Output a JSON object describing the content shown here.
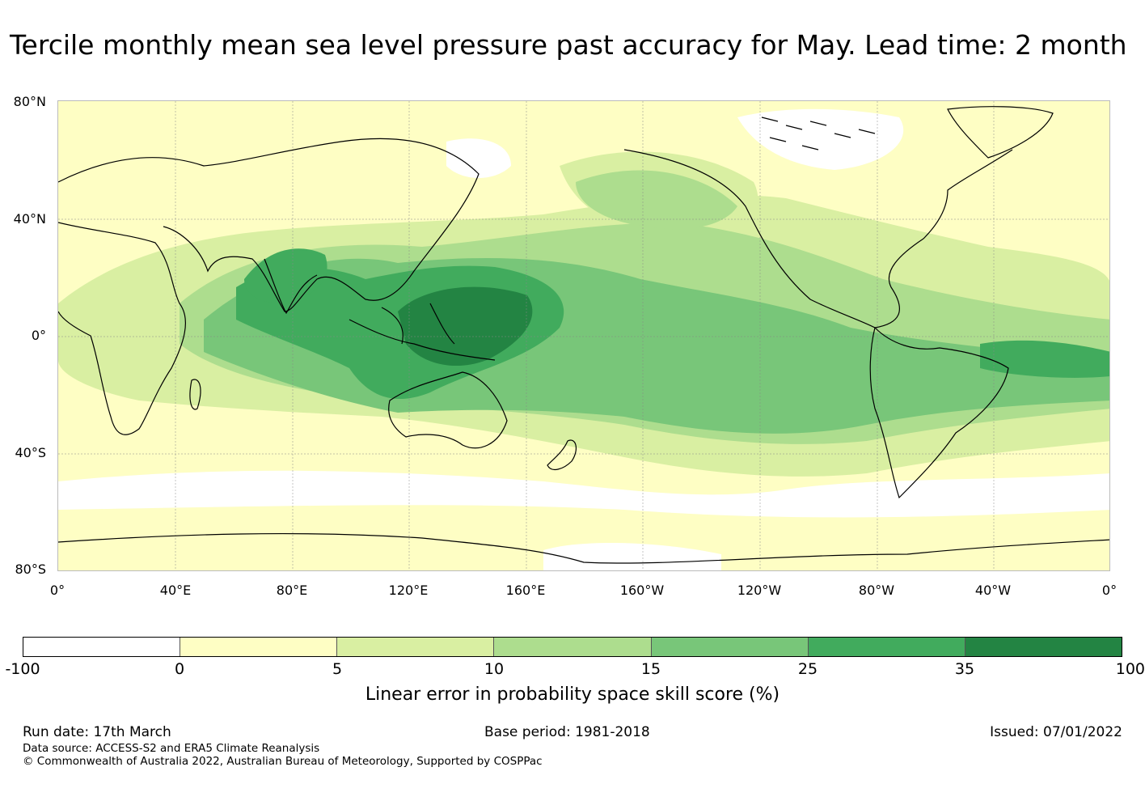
{
  "title": "Tercile monthly mean sea level pressure past accuracy for May. Lead time: 2 month",
  "map": {
    "lat_labels": [
      "80°N",
      "40°N",
      "0°",
      "40°S",
      "80°S"
    ],
    "lon_labels": [
      "0°",
      "40°E",
      "80°E",
      "120°E",
      "160°E",
      "160°W",
      "120°W",
      "80°W",
      "40°W",
      "0°"
    ],
    "colors": [
      "#ffffff",
      "#fefec4",
      "#d9efa2",
      "#addd8e",
      "#78c679",
      "#41ab5d",
      "#238443"
    ]
  },
  "colorbar": {
    "ticks": [
      "-100",
      "0",
      "5",
      "10",
      "15",
      "25",
      "35",
      "100"
    ],
    "label": "Linear error in probability space skill score (%)"
  },
  "footer": {
    "run_date": "Run date: 17th March",
    "base_period": "Base period: 1981-2018",
    "issued": "Issued: 07/01/2022",
    "data_source": "Data source: ACCESS-S2 and ERA5 Climate Reanalysis",
    "copyright": "© Commonwealth of Australia 2022, Australian Bureau of Meteorology, Supported by COSPPac"
  }
}
